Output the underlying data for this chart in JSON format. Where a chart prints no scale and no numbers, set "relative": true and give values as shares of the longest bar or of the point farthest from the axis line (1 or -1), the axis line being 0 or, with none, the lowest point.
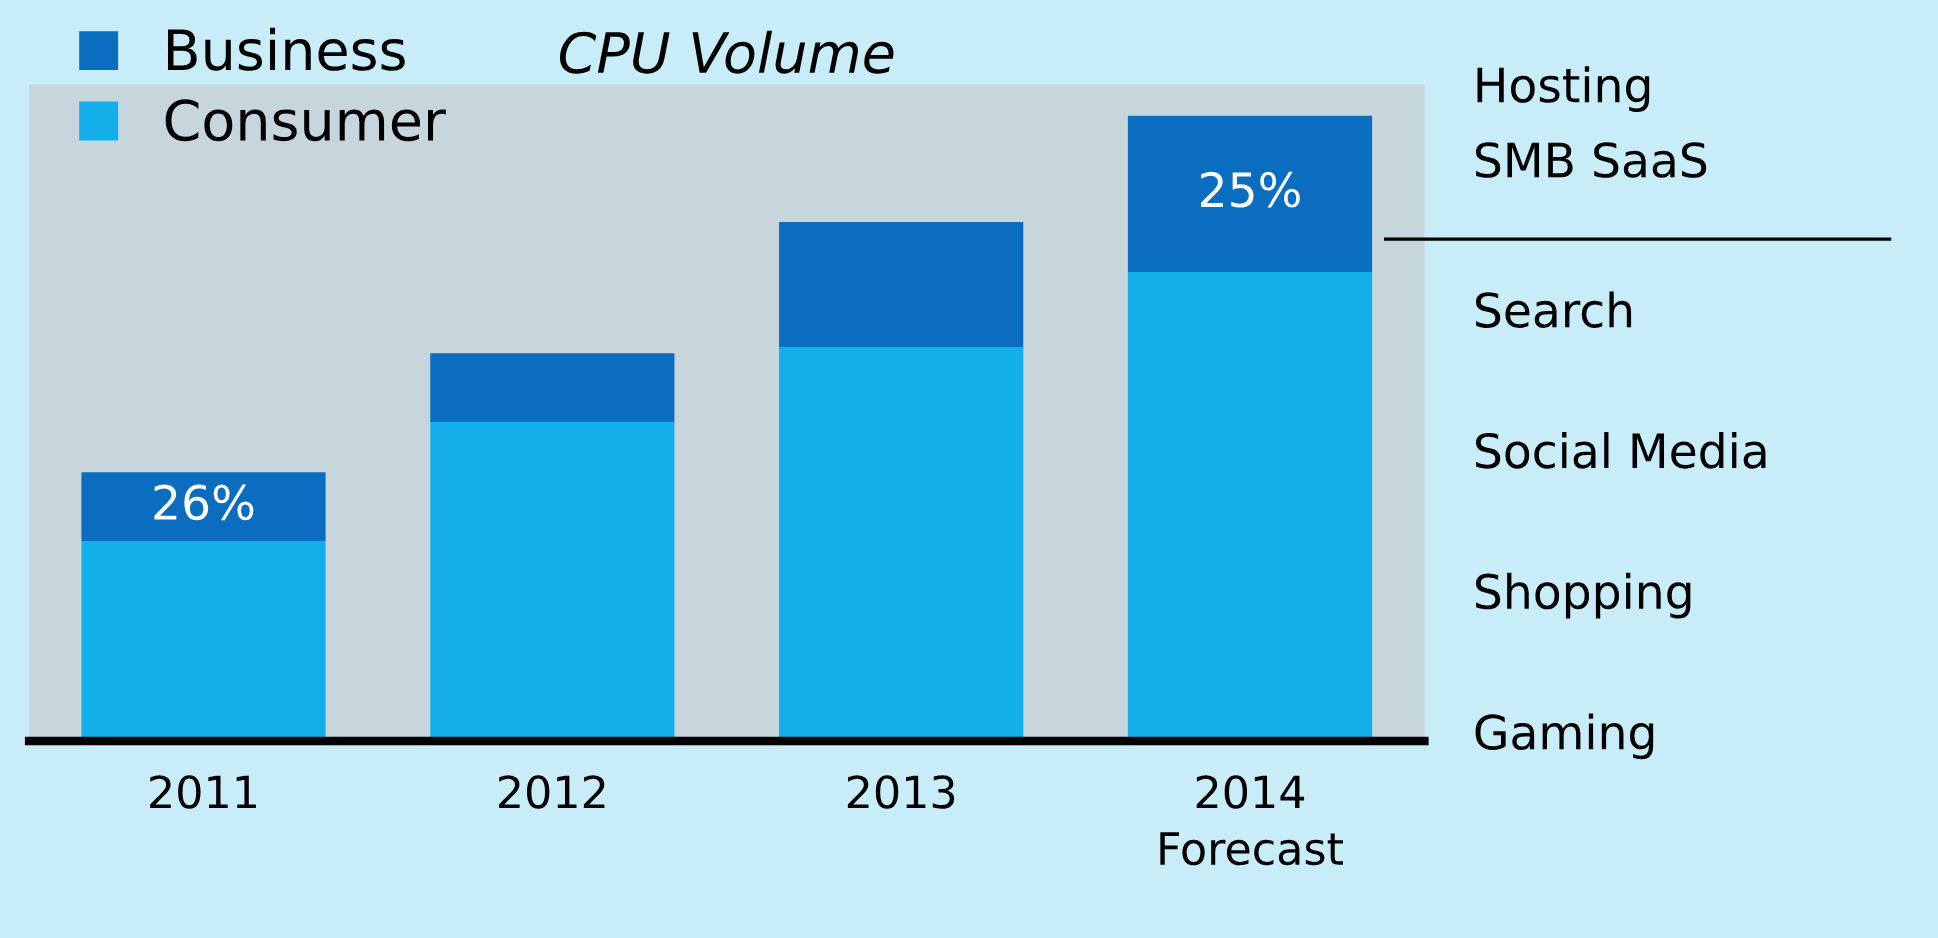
{
  "chart_data": {
    "type": "bar",
    "title": "CPU Volume",
    "stacked": true,
    "relative": true,
    "legend": "top left",
    "categories": [
      "2011",
      "2012",
      "2013",
      "2014\nForecast"
    ],
    "series": [
      {
        "name": "Consumer",
        "color": "#12afea",
        "values": [
          0.32,
          0.51,
          0.63,
          0.75
        ]
      },
      {
        "name": "Business",
        "color": "#0a6dbf",
        "values": [
          0.11,
          0.11,
          0.2,
          0.25
        ]
      }
    ],
    "annotations": [
      {
        "text": "26%",
        "x": "2011",
        "y": 0.43
      },
      {
        "text": "25%",
        "x": "2014\nForecast",
        "y": 1.0
      },
      "Hosting",
      "SMB SaaS",
      "Search",
      "Social Media",
      "Shopping",
      "Gaming"
    ]
  }
}
